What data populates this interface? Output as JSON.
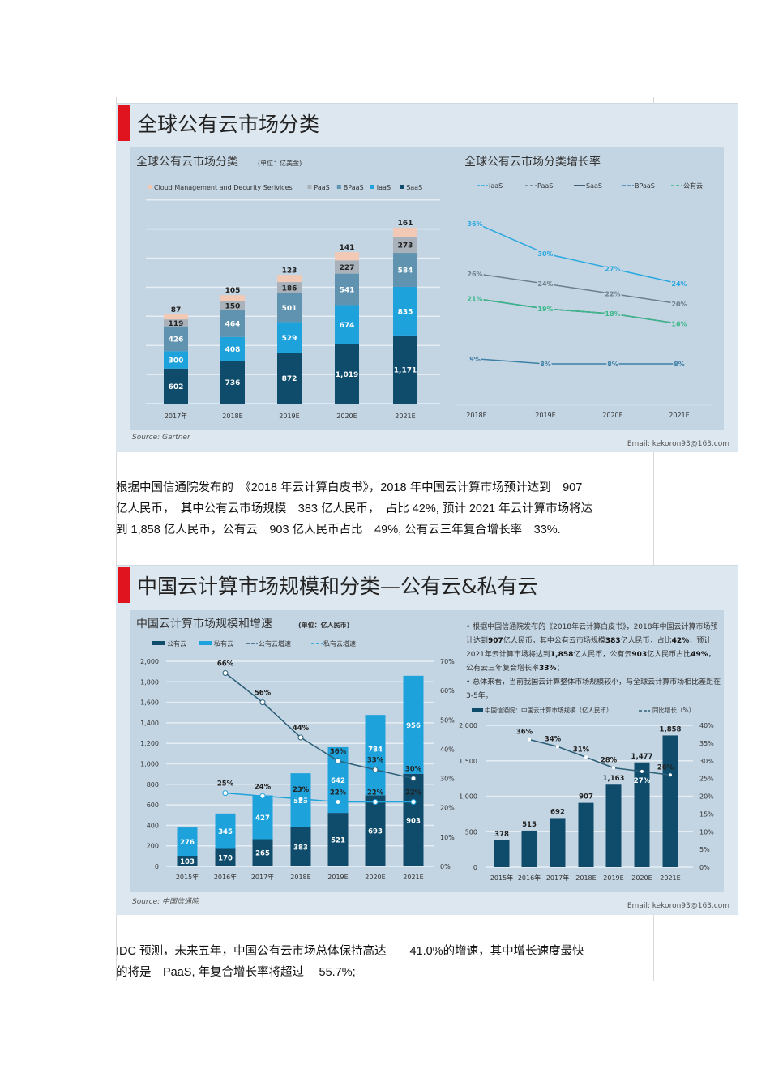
{
  "slide1": {
    "title": "全球公有云市场分类",
    "source": "Source: Gartner",
    "email": "Email:  kekoron93@163.com"
  },
  "para1": [
    "根据中国信通院发布的　《2018 年云计算白皮书》，2018 年中国云计算市场预计达到　907",
    "亿人民币，　其中公有云市场规模　383 亿人民币，　占比 42%, 预计 2021 年云计算市场将达",
    "到 1,858 亿人民币，公有云　903 亿人民币占比　49%, 公有云三年复合增长率　33%."
  ],
  "slide2": {
    "title": "中国云计算市场规模和分类—公有云&私有云",
    "source": "Source: 中国信通院",
    "email": "Email:  kekoron93@163.com",
    "bullets": [
      [
        [
          "根据中国信通院发布的《2018年云计算白皮书》，2018年中国云计算市场预计达到",
          false
        ],
        [
          "907",
          true
        ],
        [
          "亿人民币，其中公有云市场规模",
          false
        ],
        [
          "383",
          true
        ],
        [
          "亿人民币，占比",
          false
        ],
        [
          "42%",
          true
        ],
        [
          "，预计2021年云计算市场将达到",
          false
        ],
        [
          "1,858",
          true
        ],
        [
          "亿人民币，公有云",
          false
        ],
        [
          "903",
          true
        ],
        [
          "亿人民币占比",
          false
        ],
        [
          "49%",
          true
        ],
        [
          "，公有云三年复合增长率",
          false
        ],
        [
          "33%",
          true
        ],
        [
          "；",
          false
        ]
      ],
      [
        [
          "总体来看，当前我国云计算整体市场规模较小，与全球云计算市场相比差距在3-5年。",
          false
        ]
      ]
    ]
  },
  "para2": [
    "IDC 预测，未来五年，中国公有云市场总体保持高达　　41.0%的增速，其中增长速度最快",
    "的将是　PaaS, 年复合增长率将超过　 55.7%;"
  ],
  "colors": {
    "saas": "#0f4c6b",
    "iaas": "#1ea2dc",
    "bpaas": "#5f93b0",
    "paas": "#a9b2ba",
    "cms": "#f2c9b4",
    "accent_red": "#e0141e",
    "pub_growth": "#2c5f78",
    "green": "#3cb98a"
  },
  "chart_data": [
    {
      "type": "bar",
      "stacked": true,
      "title": "全球公有云市场分类",
      "unit": "(单位：亿美金)",
      "categories": [
        "2017年",
        "2018E",
        "2019E",
        "2020E",
        "2021E"
      ],
      "series": [
        {
          "name": "SaaS",
          "values": [
            602,
            736,
            872,
            1019,
            1171
          ],
          "color": "#0f4c6b"
        },
        {
          "name": "IaaS",
          "values": [
            300,
            408,
            529,
            674,
            835
          ],
          "color": "#1ea2dc"
        },
        {
          "name": "BPaaS",
          "values": [
            426,
            464,
            501,
            541,
            584
          ],
          "color": "#5f93b0"
        },
        {
          "name": "PaaS",
          "values": [
            119,
            150,
            186,
            227,
            273
          ],
          "color": "#a9b2ba"
        },
        {
          "name": "Cloud Management and Decurity Serivices",
          "values": [
            87,
            105,
            123,
            141,
            161
          ],
          "color": "#f2c9b4"
        }
      ],
      "grid": true,
      "legend": "top"
    },
    {
      "type": "line",
      "title": "全球公有云市场分类增长率",
      "categories": [
        "2018E",
        "2019E",
        "2020E",
        "2021E"
      ],
      "series": [
        {
          "name": "IaaS",
          "values": [
            36,
            30,
            27,
            24
          ],
          "color": "#2aa8e0"
        },
        {
          "name": "PaaS",
          "values": [
            26,
            24,
            22,
            20
          ],
          "color": "#6f7f8a"
        },
        {
          "name": "SaaS",
          "values": [
            21,
            19,
            18,
            16
          ],
          "color": "#163f55",
          "labels": false
        },
        {
          "name": "BPaaS",
          "values": [
            9,
            8,
            8,
            8
          ],
          "color": "#3d7fa6"
        },
        {
          "name": "公有云",
          "values": [
            21,
            19,
            18,
            16
          ],
          "color": "#3cb98a"
        }
      ],
      "legend": "top"
    },
    {
      "type": "bar",
      "stacked": true,
      "title": "中国云计算市场规模和增速",
      "unit": "(单位：亿人民币)",
      "categories": [
        "2015年",
        "2016年",
        "2017年",
        "2018E",
        "2019E",
        "2020E",
        "2021E"
      ],
      "series": [
        {
          "name": "公有云",
          "values": [
            103,
            170,
            265,
            383,
            521,
            693,
            903
          ],
          "color": "#0f4c6b"
        },
        {
          "name": "私有云",
          "values": [
            276,
            345,
            427,
            525,
            642,
            784,
            956
          ],
          "color": "#1ea2dc"
        }
      ],
      "lines": [
        {
          "name": "公有云增速",
          "values": [
            null,
            66,
            56,
            44,
            36,
            33,
            30
          ],
          "color": "#2c5f78"
        },
        {
          "name": "私有云增速",
          "values": [
            null,
            25,
            24,
            23,
            22,
            22,
            22
          ],
          "color": "#1ea2dc"
        }
      ],
      "yticks": [
        "0",
        "200",
        "400",
        "600",
        "800",
        "1,000",
        "1,200",
        "1,400",
        "1,600",
        "1,800",
        "2,000"
      ],
      "y2ticks": [
        "0%",
        "10%",
        "20%",
        "30%",
        "40%",
        "50%",
        "60%",
        "70%"
      ],
      "ylim": [
        0,
        2000
      ],
      "y2lim": [
        0,
        70
      ],
      "legend": "top"
    },
    {
      "type": "bar",
      "legend_bar": "中国信通院：中国云计算市场规模（亿人民币）",
      "legend_line": "同比增长（%）",
      "categories": [
        "2015年",
        "2016年",
        "2017年",
        "2018E",
        "2019E",
        "2020E",
        "2021E"
      ],
      "values": [
        378,
        515,
        692,
        907,
        1163,
        1477,
        1858
      ],
      "growth": [
        null,
        36,
        34,
        31,
        28,
        27,
        26
      ],
      "yticks": [
        "0",
        "500",
        "1,000",
        "1,500",
        "2,000"
      ],
      "y2ticks": [
        "0%",
        "5%",
        "10%",
        "15%",
        "20%",
        "25%",
        "30%",
        "35%",
        "40%"
      ],
      "ylim": [
        0,
        2000
      ],
      "y2lim": [
        0,
        40
      ]
    }
  ]
}
